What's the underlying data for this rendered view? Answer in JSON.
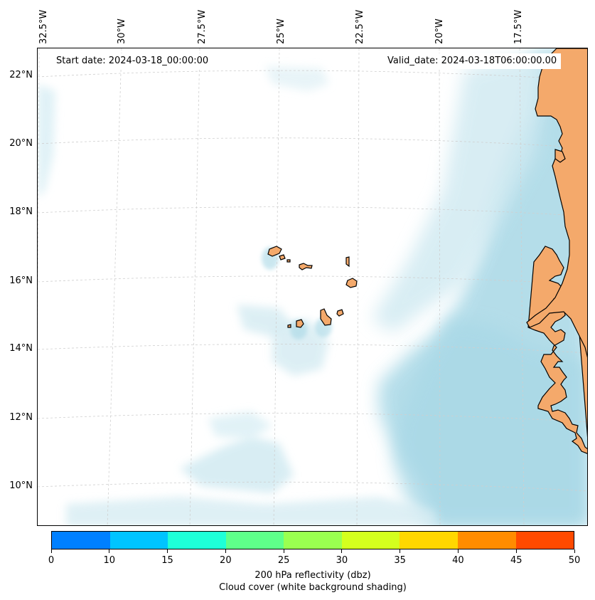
{
  "map": {
    "start_date": "Start date: 2024-03-18_00:00:00",
    "valid_date": "Valid_date: 2024-03-18T06:00:00.00",
    "lon_labels": [
      "32.5°W",
      "30°W",
      "27.5°W",
      "25°W",
      "22.5°W",
      "20°W",
      "17.5°W"
    ],
    "lat_labels": [
      "22°N",
      "20°N",
      "18°N",
      "16°N",
      "14°N",
      "12°N",
      "10°N"
    ],
    "land_color": "#f4a96b",
    "cloud_color": "#a8d8e6",
    "grid": true
  },
  "colorbar": {
    "ticks": [
      "0",
      "10",
      "15",
      "20",
      "25",
      "30",
      "35",
      "40",
      "45",
      "50"
    ],
    "colors": [
      "#0080ff",
      "#00c4ff",
      "#1effd8",
      "#5fff8a",
      "#9aff50",
      "#d4ff1e",
      "#ffd700",
      "#ff8c00",
      "#ff4a00"
    ],
    "label_line1": "200 hPa reflectivity (dbz)",
    "label_line2": "Cloud cover (white background shading)"
  }
}
